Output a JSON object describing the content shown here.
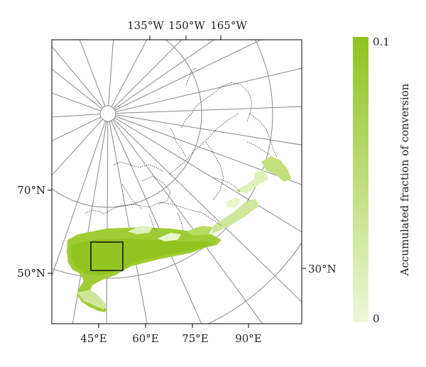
{
  "map": {
    "top_labels": [
      "135°W",
      "150°W",
      "165°W"
    ],
    "left_labels": [
      "70°N",
      "50°N"
    ],
    "right_label": "30°N",
    "bottom_labels": [
      "45°E",
      "60°E",
      "75°E",
      "90°E"
    ]
  },
  "colorbar": {
    "title": "Accumulated fraction of conversion",
    "max_label": "0.1",
    "min_label": "0",
    "color_max": "#8fc31f",
    "color_min": "#eef7d8"
  },
  "colors": {
    "graticule": "#888888",
    "boundary": "#333333",
    "frame": "#000000",
    "region_dark": "#8fc31f",
    "region_mid": "#b6da64",
    "region_light": "#dff0b8"
  }
}
